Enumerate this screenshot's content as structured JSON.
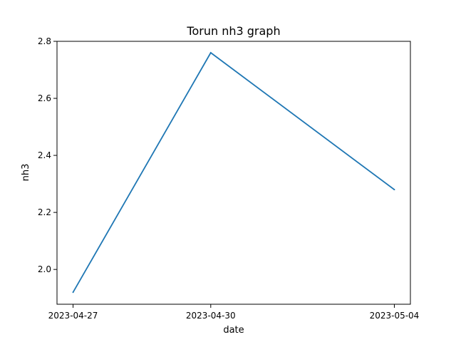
{
  "chart_data": {
    "type": "line",
    "title": "Torun nh3 graph",
    "xlabel": "date",
    "ylabel": "nh3",
    "x": [
      "2023-04-27",
      "2023-04-30",
      "2023-05-04"
    ],
    "series": [
      {
        "values": [
          1.92,
          2.76,
          2.28
        ],
        "color": "#1f77b4"
      }
    ],
    "xticks": [
      "2023-04-27",
      "2023-04-30",
      "2023-05-04"
    ],
    "yticks": [
      "2.0",
      "2.2",
      "2.4",
      "2.6",
      "2.8"
    ],
    "ylim": [
      1.878,
      2.8
    ],
    "grid": false
  }
}
